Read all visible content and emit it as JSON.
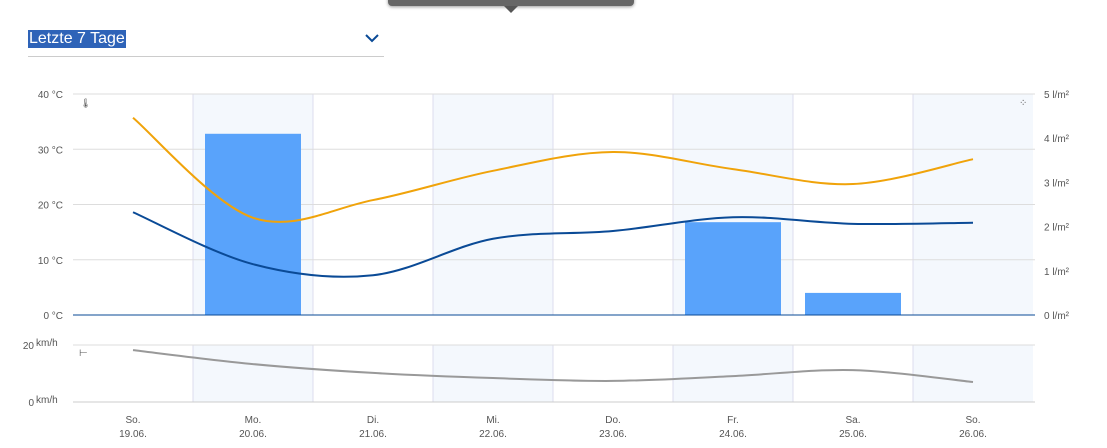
{
  "period_select": {
    "value": "Letzte 7 Tage",
    "icon": "chevron-down-icon"
  },
  "colors": {
    "max_temp": "#f0a30a",
    "min_temp": "#0a4a96",
    "precip": "#59a3fb",
    "wind": "#999999",
    "band": "#f4f8fd"
  },
  "chart_data": [
    {
      "type": "bar+line",
      "categories": [
        "So. 19.06.",
        "Mo. 20.06.",
        "Di. 21.06.",
        "Mi. 22.06.",
        "Do. 23.06.",
        "Fr. 24.06.",
        "Sa. 25.06.",
        "So. 26.06."
      ],
      "day_labels": [
        "So.",
        "Mo.",
        "Di.",
        "Mi.",
        "Do.",
        "Fr.",
        "Sa.",
        "So."
      ],
      "date_labels": [
        "19.06.",
        "20.06.",
        "21.06.",
        "22.06.",
        "23.06.",
        "24.06.",
        "25.06.",
        "26.06."
      ],
      "y_left": {
        "ticks": [
          "40 °C",
          "30 °C",
          "20 °C",
          "10 °C",
          "0 °C"
        ],
        "range": [
          0,
          40
        ],
        "icon": "thermometer-icon"
      },
      "y_right": {
        "ticks": [
          "5 l/m²",
          "4 l/m²",
          "3 l/m²",
          "2 l/m²",
          "1 l/m²",
          "0 l/m²"
        ],
        "range": [
          0,
          5
        ],
        "icon": "raindrops-icon"
      },
      "series": [
        {
          "type": "line",
          "axis": "left",
          "values": [
            35.7,
            17.6,
            20.8,
            26.1,
            29.5,
            26.4,
            23.7,
            28.2
          ]
        },
        {
          "type": "line",
          "axis": "left",
          "values": [
            18.6,
            9.2,
            7.2,
            13.8,
            15.2,
            17.7,
            16.5,
            16.7
          ]
        },
        {
          "type": "bar",
          "axis": "right",
          "values": [
            0,
            4.1,
            0,
            0,
            0,
            2.1,
            0.5,
            0
          ]
        }
      ],
      "grid": true
    },
    {
      "type": "line",
      "y": {
        "ticks": [
          "20",
          "0"
        ],
        "unit": "km/h",
        "range": [
          0,
          20
        ],
        "icon": "wind-icon"
      },
      "series": [
        {
          "values": [
            18.2,
            13.3,
            10.2,
            8.4,
            7.4,
            9.1,
            11.2,
            7.0
          ]
        }
      ],
      "grid": true
    }
  ]
}
